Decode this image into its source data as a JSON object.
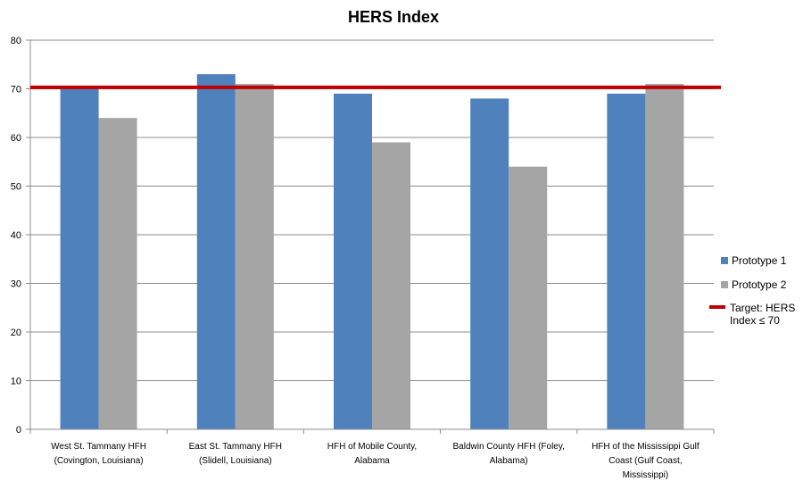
{
  "chart_data": {
    "type": "bar",
    "title": "HERS Index",
    "xlabel": "",
    "ylabel": "",
    "ylim": [
      0,
      80
    ],
    "yticks": [
      "0",
      "10",
      "20",
      "30",
      "40",
      "50",
      "60",
      "70",
      "80"
    ],
    "grid": true,
    "legend_position": "right",
    "categories": [
      [
        "West St. Tammany  HFH",
        "(Covington, Louisiana)"
      ],
      [
        "East St. Tammany  HFH",
        "(Slidell, Louisiana)"
      ],
      [
        "HFH of Mobile County,",
        "Alabama"
      ],
      [
        "Baldwin County HFH (Foley,",
        "Alabama)"
      ],
      [
        "HFH of the Mississippi  Gulf",
        "Coast (Gulf Coast,",
        "Mississippi)"
      ]
    ],
    "series": [
      {
        "name": "Prototype 1",
        "values": [
          70,
          73,
          69,
          68,
          69
        ],
        "color": "#4f81bd"
      },
      {
        "name": "Prototype 2",
        "values": [
          64,
          71,
          59,
          54,
          71
        ],
        "color": "#a5a5a5"
      }
    ],
    "target": {
      "label_lines": [
        "Target: HERS",
        "Index  ≤ 70"
      ],
      "value": 70.3,
      "color": "#c00000"
    }
  }
}
